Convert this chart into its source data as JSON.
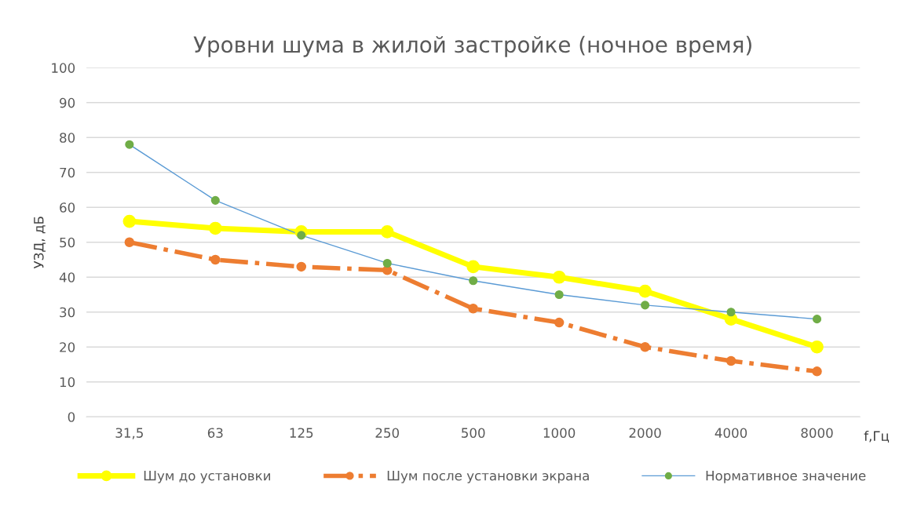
{
  "chart_data": {
    "type": "line",
    "title": "Уровни шума в жилой застройке (ночное время)",
    "xlabel": "f,Гц",
    "ylabel": "УЗД, дБ",
    "categories": [
      "31,5",
      "63",
      "125",
      "250",
      "500",
      "1000",
      "2000",
      "4000",
      "8000"
    ],
    "series": [
      {
        "name": "Шум до установки",
        "color": "#ffff00",
        "line_style": "solid",
        "values": [
          56,
          54,
          53,
          53,
          43,
          40,
          36,
          28,
          20
        ]
      },
      {
        "name": "Шум после установки экрана",
        "color": "#ed7d31",
        "line_style": "dashdot",
        "values": [
          50,
          45,
          43,
          42,
          31,
          27,
          20,
          16,
          13
        ]
      },
      {
        "name": "Нормативное значение",
        "color": "#5b9bd5",
        "colors": [
          "#70ad47",
          "#70ad47",
          "#70ad47",
          "#70ad47",
          "#70ad47",
          "#70ad47",
          "#70ad47",
          "#70ad47",
          "#70ad47"
        ],
        "line_style": "solid",
        "values": [
          78,
          62,
          52,
          44,
          39,
          35,
          32,
          30,
          28
        ]
      }
    ],
    "ylim": [
      0,
      100
    ],
    "yticks": [
      0,
      10,
      20,
      30,
      40,
      50,
      60,
      70,
      80,
      90,
      100
    ],
    "grid": "y",
    "legend": "bottom",
    "marker": "circle"
  }
}
